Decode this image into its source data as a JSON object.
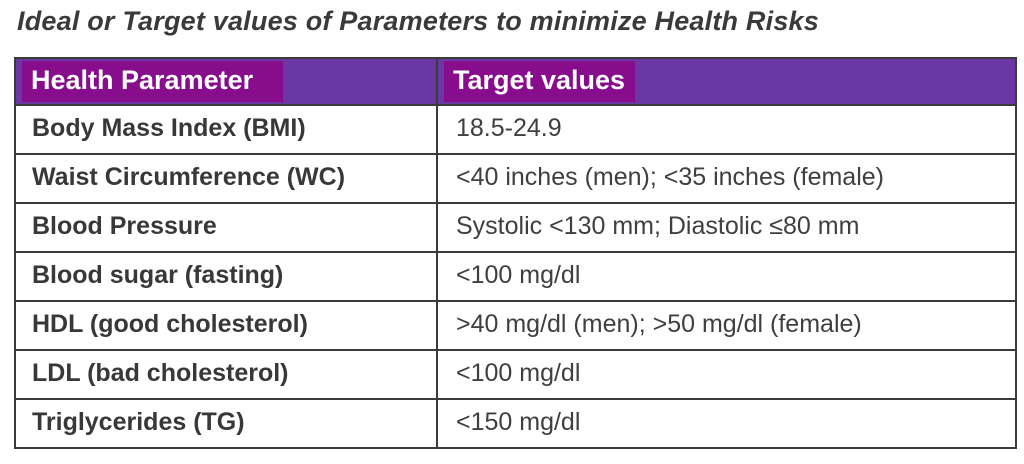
{
  "title": "Ideal or Target values of Parameters to minimize Health Risks",
  "table": {
    "headers": [
      "Health Parameter",
      "Target values"
    ],
    "rows": [
      {
        "parameter": "Body Mass Index (BMI)",
        "target": "18.5-24.9"
      },
      {
        "parameter": "Waist Circumference (WC)",
        "target": "<40 inches (men); <35 inches (female)"
      },
      {
        "parameter": "Blood Pressure",
        "target": "Systolic <130 mm; Diastolic ≤80 mm"
      },
      {
        "parameter": "Blood sugar (fasting)",
        "target": "<100 mg/dl"
      },
      {
        "parameter": "HDL (good cholesterol)",
        "target": ">40 mg/dl (men); >50 mg/dl (female)"
      },
      {
        "parameter": "LDL (bad cholesterol)",
        "target": "<100 mg/dl"
      },
      {
        "parameter": "Triglycerides (TG)",
        "target": "<150 mg/dl"
      }
    ],
    "colors": {
      "header_cell_background": "#6b37a4",
      "header_text_highlight": "#870d8d",
      "header_text": "#ffffff",
      "border": "#3b3b3b",
      "body_text": "#3f3f3f",
      "title_text": "#3a3a3a"
    }
  }
}
